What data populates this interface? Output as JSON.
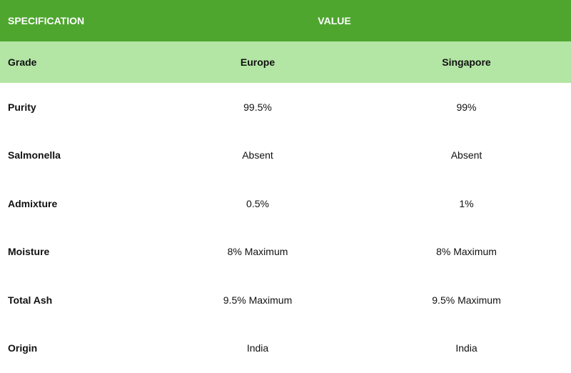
{
  "header": {
    "specification": "SPECIFICATION",
    "value": "VALUE"
  },
  "grade": {
    "label": "Grade",
    "europe": "Europe",
    "singapore": "Singapore"
  },
  "rows": [
    {
      "spec": "Purity",
      "europe": "99.5%",
      "singapore": "99%"
    },
    {
      "spec": "Salmonella",
      "europe": "Absent",
      "singapore": "Absent"
    },
    {
      "spec": "Admixture",
      "europe": "0.5%",
      "singapore": "1%"
    },
    {
      "spec": "Moisture",
      "europe": "8% Maximum",
      "singapore": "8% Maximum"
    },
    {
      "spec": "Total Ash",
      "europe": "9.5% Maximum",
      "singapore": "9.5% Maximum"
    },
    {
      "spec": "Origin",
      "europe": "India",
      "singapore": "India"
    }
  ],
  "colors": {
    "header_bg": "#4ea62f",
    "grade_bg": "#b3e5a4"
  }
}
